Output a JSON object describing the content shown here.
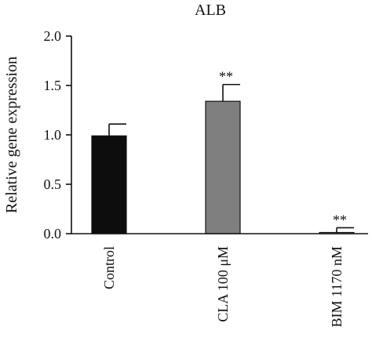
{
  "chart_data": {
    "type": "bar",
    "title": "ALB",
    "ylabel": "Relative gene expression",
    "xlabel": "",
    "ylim": [
      0,
      2.0
    ],
    "yticks": [
      "0.0",
      "0.5",
      "1.0",
      "1.5",
      "2.0"
    ],
    "categories": [
      "Control",
      "CLA 100 μM",
      "BIM 1170 nM"
    ],
    "values": [
      0.99,
      1.34,
      0.01
    ],
    "errors": [
      0.12,
      0.17,
      0.05
    ],
    "significance": [
      "",
      "**",
      "**"
    ],
    "colors": [
      "#0d0d0d",
      "#7f7f7f",
      "#cfcfcf"
    ],
    "grid": false,
    "legend": "none"
  }
}
